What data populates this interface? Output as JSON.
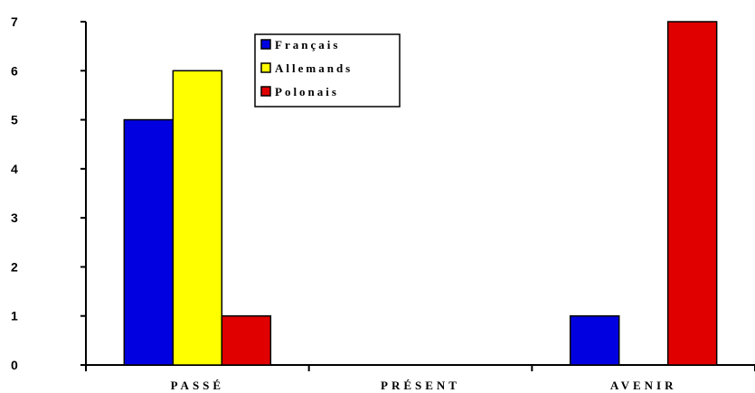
{
  "chart_data": {
    "type": "bar",
    "categories": [
      "PASSÉ",
      "PRÉSENT",
      "AVENIR"
    ],
    "series": [
      {
        "name": "Français",
        "color": "#0000e0",
        "values": [
          5,
          0,
          1
        ]
      },
      {
        "name": "Allemands",
        "color": "#ffff00",
        "values": [
          6,
          0,
          0
        ]
      },
      {
        "name": "Polonais",
        "color": "#e00000",
        "values": [
          1,
          0,
          7
        ]
      }
    ],
    "yticks": [
      0,
      1,
      2,
      3,
      4,
      5,
      6,
      7
    ],
    "ylim": [
      0,
      7
    ],
    "title": "",
    "xlabel": "",
    "ylabel": "",
    "legend_position": "top-center",
    "grid": false
  }
}
